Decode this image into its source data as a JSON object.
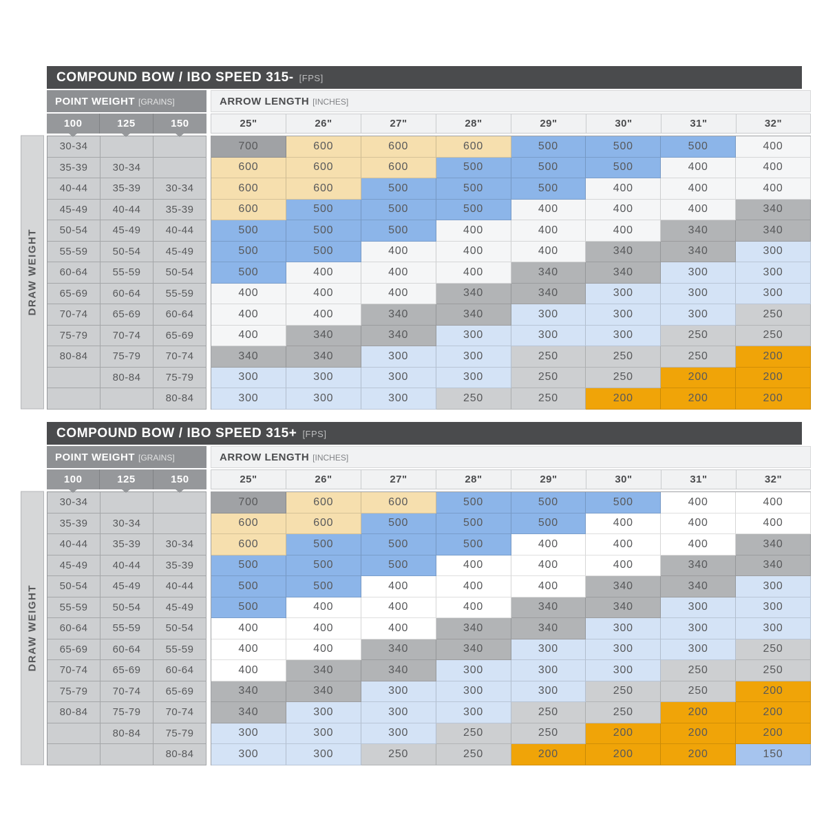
{
  "palette": {
    "G": "#a0a2a5",
    "T": "#f6dfae",
    "B": "#8cb5e9",
    "w": "#f5f6f7",
    "W": "#ffffff",
    "g": "#b2b4b6",
    "L": "#d4e3f6",
    "l": "#cdcfd1",
    "O": "#f0a408",
    "b": "#a6c4ee"
  },
  "legend": {
    "cell_text_color": "#57585a",
    "title_bar_color": "#4a4b4d",
    "orange_color": "#f0a408"
  },
  "chart_data": [
    {
      "type": "table",
      "title": "COMPOUND BOW / IBO SPEED 315-",
      "title_unit": "[FPS]",
      "col_group_left": {
        "label": "POINT WEIGHT",
        "unit": "[GRAINS]"
      },
      "col_group_right": {
        "label": "ARROW LENGTH",
        "unit": "[INCHES]"
      },
      "row_group_label": "DRAW WEIGHT",
      "point_weight_columns": [
        "100",
        "125",
        "150"
      ],
      "arrow_length_columns": [
        "25\"",
        "26\"",
        "27\"",
        "28\"",
        "29\"",
        "30\"",
        "31\"",
        "32\""
      ],
      "rows": [
        {
          "draw_weights": [
            "30-34",
            "",
            ""
          ],
          "spines": [
            "700",
            "600",
            "600",
            "600",
            "500",
            "500",
            "500",
            "400"
          ],
          "colors": [
            "G",
            "T",
            "T",
            "T",
            "B",
            "B",
            "B",
            "w"
          ]
        },
        {
          "draw_weights": [
            "35-39",
            "30-34",
            ""
          ],
          "spines": [
            "600",
            "600",
            "600",
            "500",
            "500",
            "500",
            "400",
            "400"
          ],
          "colors": [
            "T",
            "T",
            "T",
            "B",
            "B",
            "B",
            "w",
            "w"
          ]
        },
        {
          "draw_weights": [
            "40-44",
            "35-39",
            "30-34"
          ],
          "spines": [
            "600",
            "600",
            "500",
            "500",
            "500",
            "400",
            "400",
            "400"
          ],
          "colors": [
            "T",
            "T",
            "B",
            "B",
            "B",
            "w",
            "w",
            "w"
          ]
        },
        {
          "draw_weights": [
            "45-49",
            "40-44",
            "35-39"
          ],
          "spines": [
            "600",
            "500",
            "500",
            "500",
            "400",
            "400",
            "400",
            "340"
          ],
          "colors": [
            "T",
            "B",
            "B",
            "B",
            "w",
            "w",
            "w",
            "g"
          ]
        },
        {
          "draw_weights": [
            "50-54",
            "45-49",
            "40-44"
          ],
          "spines": [
            "500",
            "500",
            "500",
            "400",
            "400",
            "400",
            "340",
            "340"
          ],
          "colors": [
            "B",
            "B",
            "B",
            "w",
            "w",
            "w",
            "g",
            "g"
          ]
        },
        {
          "draw_weights": [
            "55-59",
            "50-54",
            "45-49"
          ],
          "spines": [
            "500",
            "500",
            "400",
            "400",
            "400",
            "340",
            "340",
            "300"
          ],
          "colors": [
            "B",
            "B",
            "w",
            "w",
            "w",
            "g",
            "g",
            "L"
          ]
        },
        {
          "draw_weights": [
            "60-64",
            "55-59",
            "50-54"
          ],
          "spines": [
            "500",
            "400",
            "400",
            "400",
            "340",
            "340",
            "300",
            "300"
          ],
          "colors": [
            "B",
            "w",
            "w",
            "w",
            "g",
            "g",
            "L",
            "L"
          ]
        },
        {
          "draw_weights": [
            "65-69",
            "60-64",
            "55-59"
          ],
          "spines": [
            "400",
            "400",
            "400",
            "340",
            "340",
            "300",
            "300",
            "300"
          ],
          "colors": [
            "w",
            "w",
            "w",
            "g",
            "g",
            "L",
            "L",
            "L"
          ]
        },
        {
          "draw_weights": [
            "70-74",
            "65-69",
            "60-64"
          ],
          "spines": [
            "400",
            "400",
            "340",
            "340",
            "300",
            "300",
            "300",
            "250"
          ],
          "colors": [
            "w",
            "w",
            "g",
            "g",
            "L",
            "L",
            "L",
            "l"
          ]
        },
        {
          "draw_weights": [
            "75-79",
            "70-74",
            "65-69"
          ],
          "spines": [
            "400",
            "340",
            "340",
            "300",
            "300",
            "300",
            "250",
            "250"
          ],
          "colors": [
            "w",
            "g",
            "g",
            "L",
            "L",
            "L",
            "l",
            "l"
          ]
        },
        {
          "draw_weights": [
            "80-84",
            "75-79",
            "70-74"
          ],
          "spines": [
            "340",
            "340",
            "300",
            "300",
            "250",
            "250",
            "250",
            "200"
          ],
          "colors": [
            "g",
            "g",
            "L",
            "L",
            "l",
            "l",
            "l",
            "O"
          ]
        },
        {
          "draw_weights": [
            "",
            "80-84",
            "75-79"
          ],
          "spines": [
            "300",
            "300",
            "300",
            "300",
            "250",
            "250",
            "200",
            "200"
          ],
          "colors": [
            "L",
            "L",
            "L",
            "L",
            "l",
            "l",
            "O",
            "O"
          ]
        },
        {
          "draw_weights": [
            "",
            "",
            "80-84"
          ],
          "spines": [
            "300",
            "300",
            "300",
            "250",
            "250",
            "200",
            "200",
            "200"
          ],
          "colors": [
            "L",
            "L",
            "L",
            "l",
            "l",
            "O",
            "O",
            "O"
          ]
        }
      ]
    },
    {
      "type": "table",
      "title": "COMPOUND BOW / IBO SPEED 315+",
      "title_unit": "[FPS]",
      "col_group_left": {
        "label": "POINT WEIGHT",
        "unit": "[GRAINS]"
      },
      "col_group_right": {
        "label": "ARROW LENGTH",
        "unit": "[INCHES]"
      },
      "row_group_label": "DRAW WEIGHT",
      "point_weight_columns": [
        "100",
        "125",
        "150"
      ],
      "arrow_length_columns": [
        "25\"",
        "26\"",
        "27\"",
        "28\"",
        "29\"",
        "30\"",
        "31\"",
        "32\""
      ],
      "rows": [
        {
          "draw_weights": [
            "30-34",
            "",
            ""
          ],
          "spines": [
            "700",
            "600",
            "600",
            "500",
            "500",
            "500",
            "400",
            "400"
          ],
          "colors": [
            "G",
            "T",
            "T",
            "B",
            "B",
            "B",
            "W",
            "W"
          ]
        },
        {
          "draw_weights": [
            "35-39",
            "30-34",
            ""
          ],
          "spines": [
            "600",
            "600",
            "500",
            "500",
            "500",
            "400",
            "400",
            "400"
          ],
          "colors": [
            "T",
            "T",
            "B",
            "B",
            "B",
            "W",
            "W",
            "W"
          ]
        },
        {
          "draw_weights": [
            "40-44",
            "35-39",
            "30-34"
          ],
          "spines": [
            "600",
            "500",
            "500",
            "500",
            "400",
            "400",
            "400",
            "340"
          ],
          "colors": [
            "T",
            "B",
            "B",
            "B",
            "W",
            "W",
            "W",
            "g"
          ]
        },
        {
          "draw_weights": [
            "45-49",
            "40-44",
            "35-39"
          ],
          "spines": [
            "500",
            "500",
            "500",
            "400",
            "400",
            "400",
            "340",
            "340"
          ],
          "colors": [
            "B",
            "B",
            "B",
            "W",
            "W",
            "W",
            "g",
            "g"
          ]
        },
        {
          "draw_weights": [
            "50-54",
            "45-49",
            "40-44"
          ],
          "spines": [
            "500",
            "500",
            "400",
            "400",
            "400",
            "340",
            "340",
            "300"
          ],
          "colors": [
            "B",
            "B",
            "W",
            "W",
            "W",
            "g",
            "g",
            "L"
          ]
        },
        {
          "draw_weights": [
            "55-59",
            "50-54",
            "45-49"
          ],
          "spines": [
            "500",
            "400",
            "400",
            "400",
            "340",
            "340",
            "300",
            "300"
          ],
          "colors": [
            "B",
            "W",
            "W",
            "W",
            "g",
            "g",
            "L",
            "L"
          ]
        },
        {
          "draw_weights": [
            "60-64",
            "55-59",
            "50-54"
          ],
          "spines": [
            "400",
            "400",
            "400",
            "340",
            "340",
            "300",
            "300",
            "300"
          ],
          "colors": [
            "W",
            "W",
            "W",
            "g",
            "g",
            "L",
            "L",
            "L"
          ]
        },
        {
          "draw_weights": [
            "65-69",
            "60-64",
            "55-59"
          ],
          "spines": [
            "400",
            "400",
            "340",
            "340",
            "300",
            "300",
            "300",
            "250"
          ],
          "colors": [
            "W",
            "W",
            "g",
            "g",
            "L",
            "L",
            "L",
            "l"
          ]
        },
        {
          "draw_weights": [
            "70-74",
            "65-69",
            "60-64"
          ],
          "spines": [
            "400",
            "340",
            "340",
            "300",
            "300",
            "300",
            "250",
            "250"
          ],
          "colors": [
            "W",
            "g",
            "g",
            "L",
            "L",
            "L",
            "l",
            "l"
          ]
        },
        {
          "draw_weights": [
            "75-79",
            "70-74",
            "65-69"
          ],
          "spines": [
            "340",
            "340",
            "300",
            "300",
            "300",
            "250",
            "250",
            "200"
          ],
          "colors": [
            "g",
            "g",
            "L",
            "L",
            "L",
            "l",
            "l",
            "O"
          ]
        },
        {
          "draw_weights": [
            "80-84",
            "75-79",
            "70-74"
          ],
          "spines": [
            "340",
            "300",
            "300",
            "300",
            "250",
            "250",
            "200",
            "200"
          ],
          "colors": [
            "g",
            "L",
            "L",
            "L",
            "l",
            "l",
            "O",
            "O"
          ]
        },
        {
          "draw_weights": [
            "",
            "80-84",
            "75-79"
          ],
          "spines": [
            "300",
            "300",
            "300",
            "250",
            "250",
            "200",
            "200",
            "200"
          ],
          "colors": [
            "L",
            "L",
            "L",
            "l",
            "l",
            "O",
            "O",
            "O"
          ]
        },
        {
          "draw_weights": [
            "",
            "",
            "80-84"
          ],
          "spines": [
            "300",
            "300",
            "250",
            "250",
            "200",
            "200",
            "200",
            "150"
          ],
          "colors": [
            "L",
            "L",
            "l",
            "l",
            "O",
            "O",
            "O",
            "b"
          ]
        }
      ]
    }
  ]
}
